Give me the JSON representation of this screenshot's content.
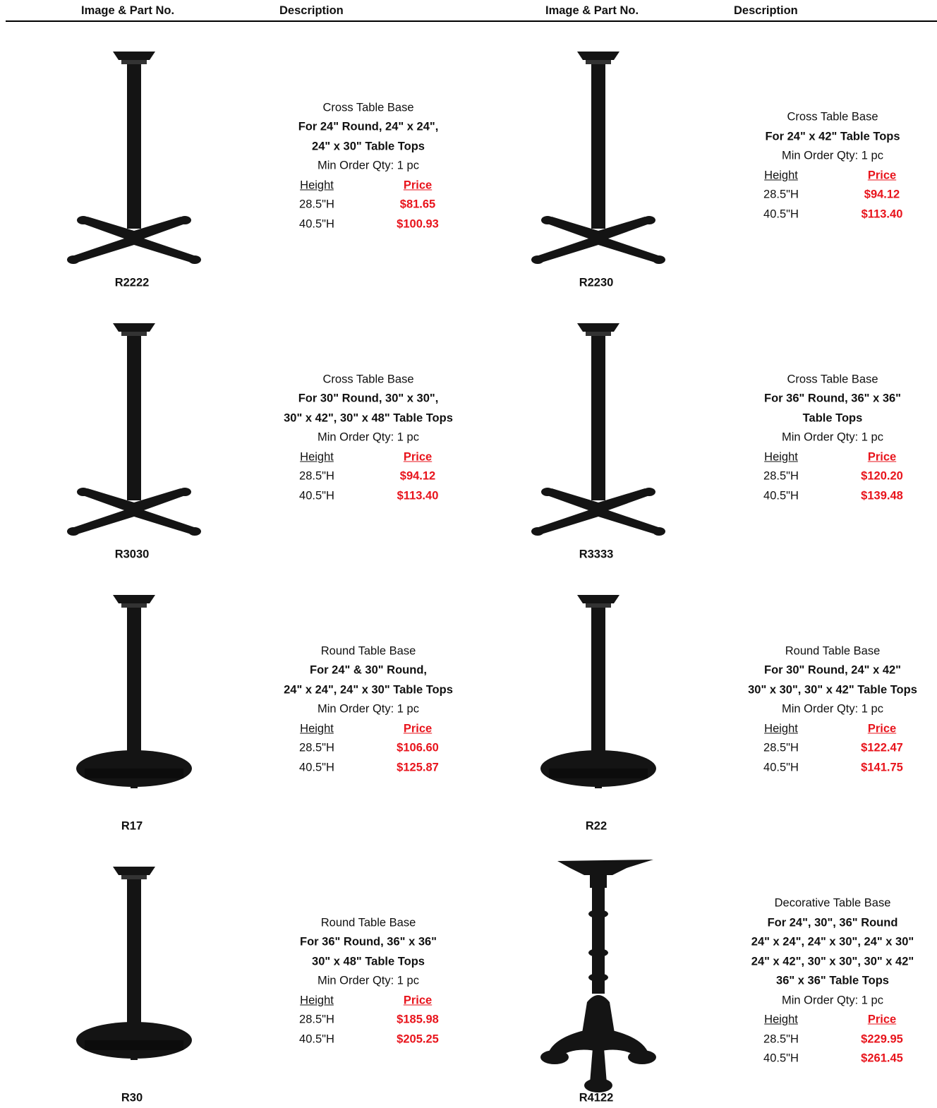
{
  "header": {
    "columns": [
      "Image & Part No.",
      "Description",
      "Image & Part No.",
      "Description"
    ]
  },
  "products": [
    {
      "part_no": "R2222",
      "type": "Cross Table Base",
      "sizes": [
        "For 24\" Round, 24\" x 24\",",
        "24\" x 30\" Table Tops"
      ],
      "min_order": "Min Order Qty: 1 pc",
      "height_label": "Height",
      "price_label": "Price",
      "options": [
        [
          "28.5\"H",
          "$81.65"
        ],
        [
          "40.5\"H",
          "$100.93"
        ]
      ]
    },
    {
      "part_no": "R2230",
      "type": "Cross Table Base",
      "sizes": [
        "For 24\" x 42\" Table Tops"
      ],
      "min_order": "Min Order Qty: 1 pc",
      "height_label": "Height",
      "price_label": "Price",
      "options": [
        [
          "28.5\"H",
          "$94.12"
        ],
        [
          "40.5\"H",
          "$113.40"
        ]
      ]
    },
    {
      "part_no": "R3030",
      "type": "Cross Table Base",
      "sizes": [
        "For 30\" Round, 30\" x 30\",",
        "30\" x 42\", 30\" x 48\" Table Tops"
      ],
      "min_order": "Min Order Qty: 1 pc",
      "height_label": "Height",
      "price_label": "Price",
      "options": [
        [
          "28.5\"H",
          "$94.12"
        ],
        [
          "40.5\"H",
          "$113.40"
        ]
      ]
    },
    {
      "part_no": "R3333",
      "type": "Cross Table Base",
      "sizes": [
        "For 36\" Round, 36\" x 36\"",
        "Table Tops"
      ],
      "min_order": "Min Order Qty: 1 pc",
      "height_label": "Height",
      "price_label": "Price",
      "options": [
        [
          "28.5\"H",
          "$120.20"
        ],
        [
          "40.5\"H",
          "$139.48"
        ]
      ]
    },
    {
      "part_no": "R17",
      "type": "Round Table Base",
      "sizes": [
        "For 24\" & 30\" Round,",
        "24\" x 24\", 24\" x 30\" Table Tops"
      ],
      "min_order": "Min Order Qty: 1 pc",
      "height_label": "Height",
      "price_label": "Price",
      "options": [
        [
          "28.5\"H",
          "$106.60"
        ],
        [
          "40.5\"H",
          "$125.87"
        ]
      ]
    },
    {
      "part_no": "R22",
      "type": "Round Table Base",
      "sizes": [
        "For 30\" Round, 24\" x 42\"",
        "30\" x 30\", 30\" x 42\" Table Tops"
      ],
      "min_order": "Min Order Qty: 1 pc",
      "height_label": "Height",
      "price_label": "Price",
      "options": [
        [
          "28.5\"H",
          "$122.47"
        ],
        [
          "40.5\"H",
          "$141.75"
        ]
      ]
    },
    {
      "part_no": "R30",
      "type": "Round Table Base",
      "sizes": [
        "For 36\" Round, 36\" x 36\"",
        "30\" x 48\" Table Tops"
      ],
      "min_order": "Min Order Qty: 1 pc",
      "height_label": "Height",
      "price_label": "Price",
      "options": [
        [
          "28.5\"H",
          "$185.98"
        ],
        [
          "40.5\"H",
          "$205.25"
        ]
      ]
    },
    {
      "part_no": "R4122",
      "type": "Decorative Table Base",
      "sizes": [
        "For 24\", 30\", 36\" Round",
        "24\" x 24\", 24\" x 30\", 24\" x 30\"",
        "24\" x 42\", 30\" x 30\", 30\" x 42\"",
        "36\" x 36\" Table Tops"
      ],
      "min_order": "Min Order Qty: 1 pc",
      "height_label": "Height",
      "price_label": "Price",
      "options": [
        [
          "28.5\"H",
          "$229.95"
        ],
        [
          "40.5\"H",
          "$261.45"
        ]
      ]
    }
  ]
}
